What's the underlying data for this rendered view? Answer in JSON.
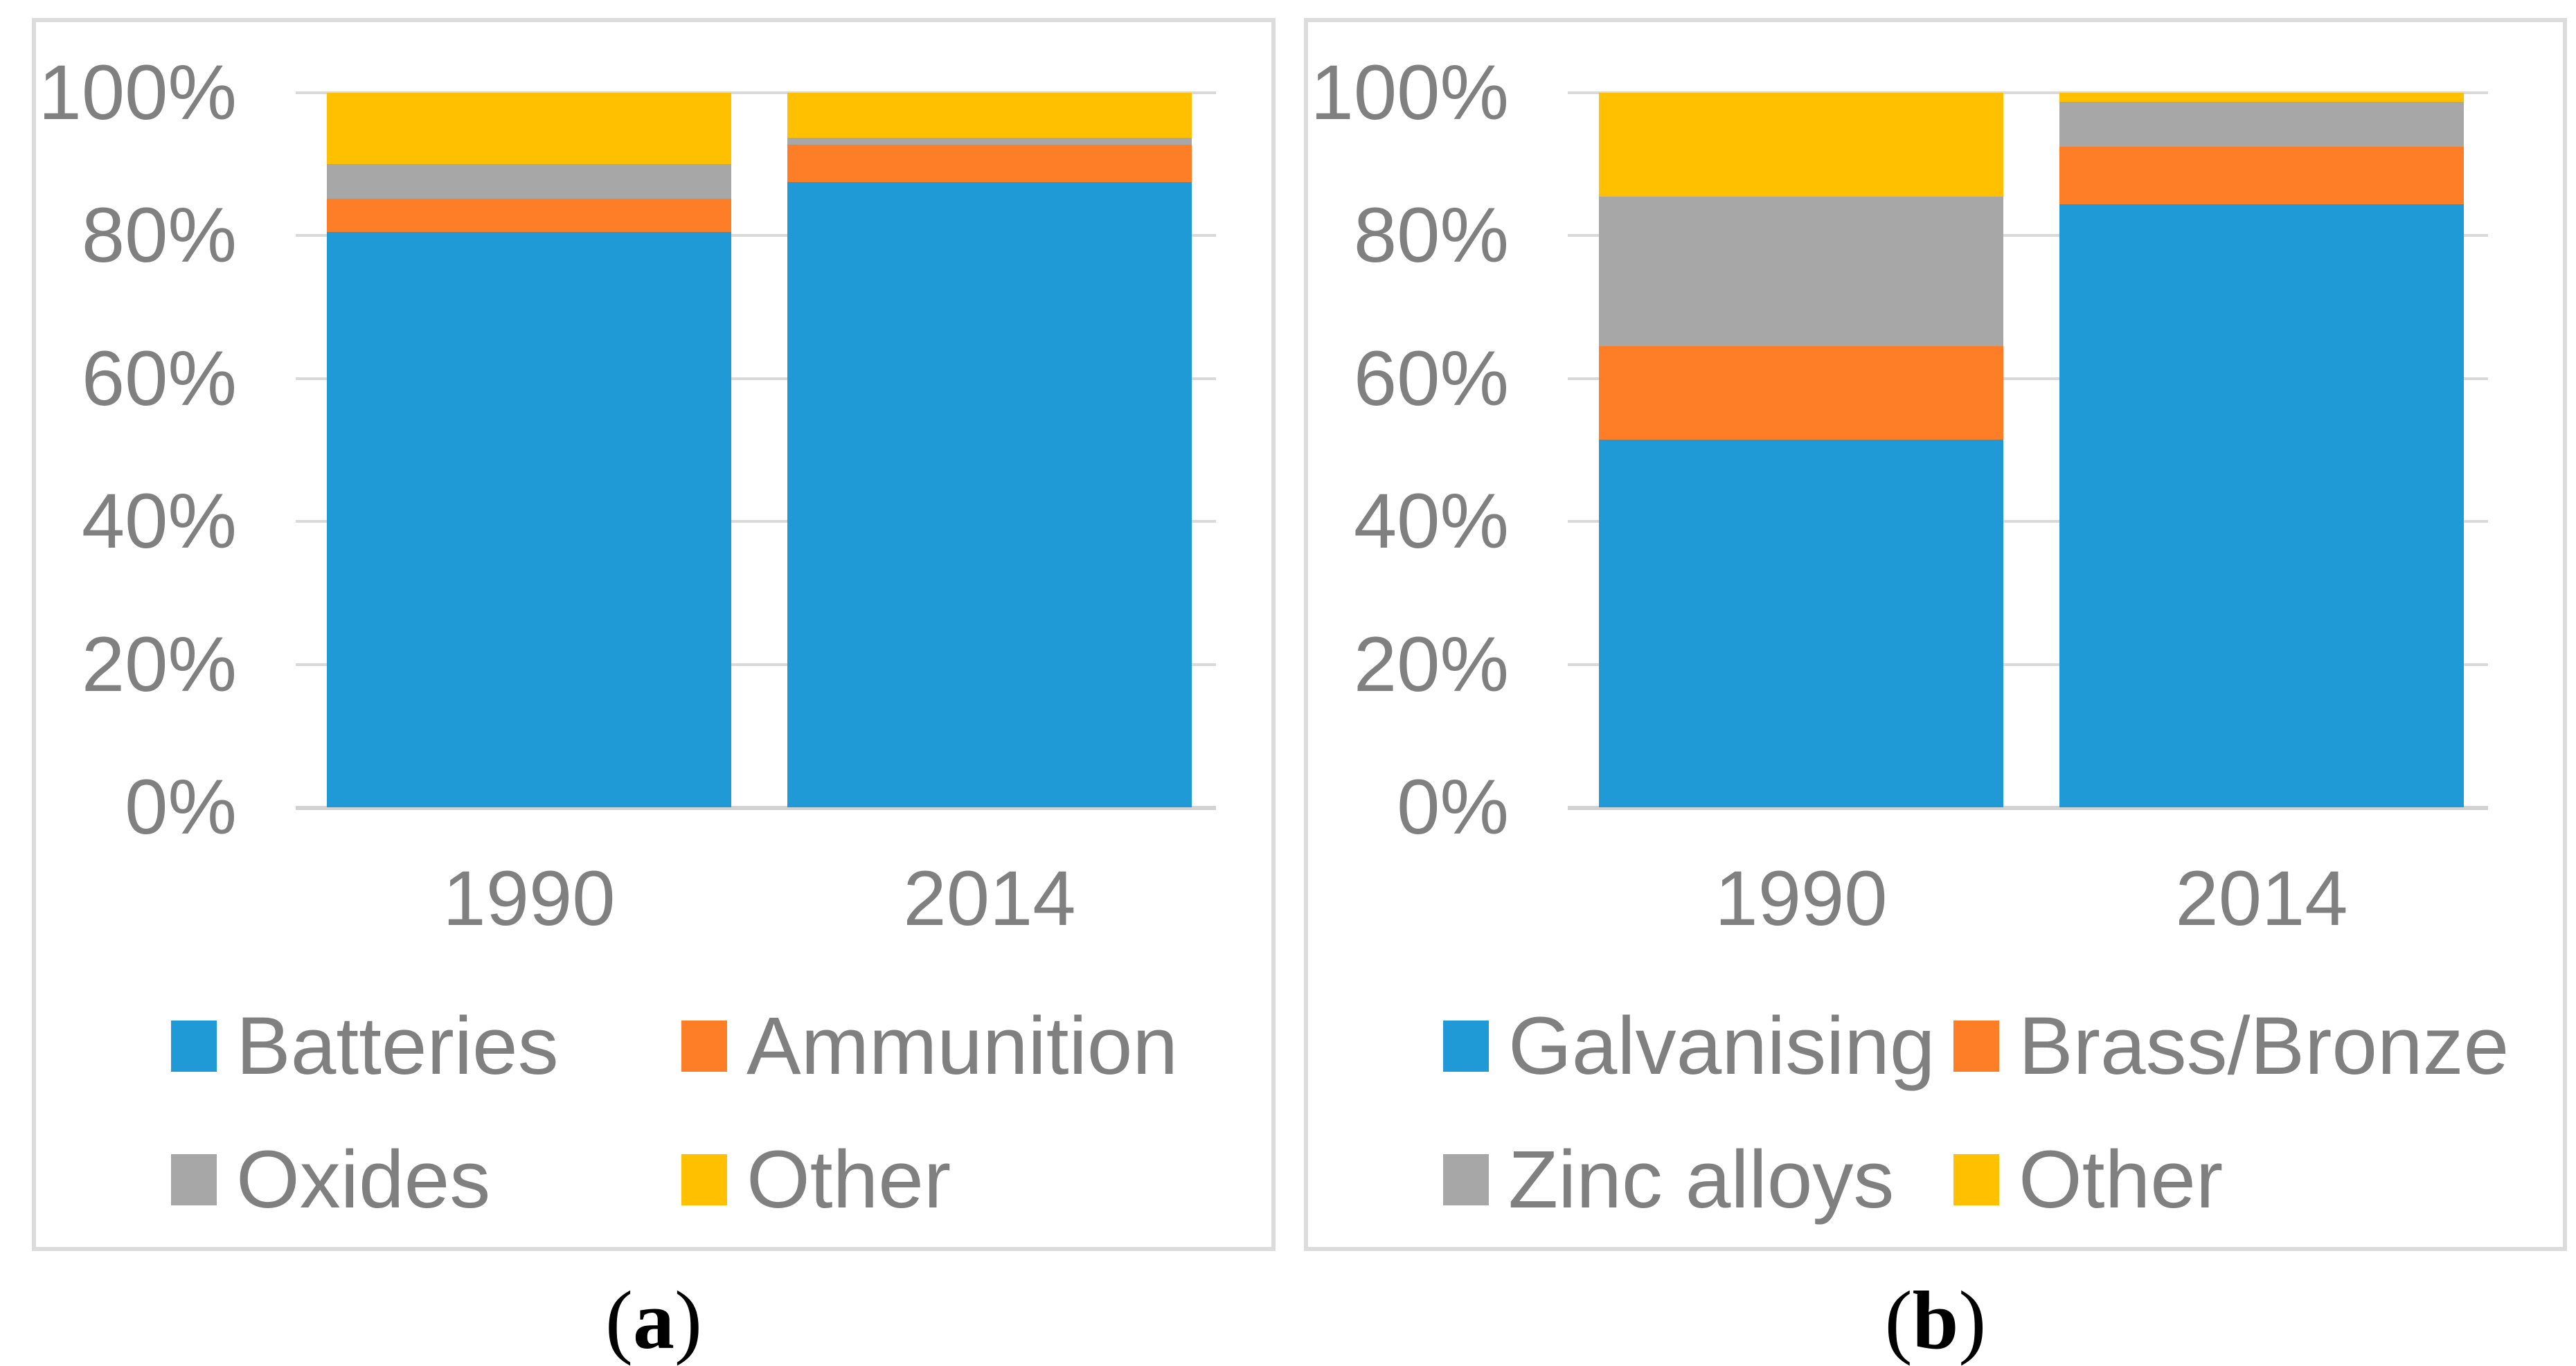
{
  "styles": {
    "axis_text_color": "#808080",
    "gridline_color": "#d9d9d9",
    "baseline_color": "#d2d2d2",
    "panel_border_color": "#dcdcdc",
    "caption_color": "#000000",
    "series_palette": [
      "#1f9ad7",
      "#fd7e27",
      "#a7a7a7",
      "#ffc000"
    ]
  },
  "chart_data": [
    {
      "type": "bar",
      "variant": "stacked-100pct",
      "caption": "(a)",
      "title": "",
      "xlabel": "",
      "ylabel": "",
      "ylim": [
        0,
        100
      ],
      "grid": true,
      "legend_position": "bottom",
      "categories": [
        "1990",
        "2014"
      ],
      "y_ticks": [
        {
          "value": 0,
          "label": "0%"
        },
        {
          "value": 20,
          "label": "20%"
        },
        {
          "value": 40,
          "label": "40%"
        },
        {
          "value": 60,
          "label": "60%"
        },
        {
          "value": 80,
          "label": "80%"
        },
        {
          "value": 100,
          "label": "100%"
        }
      ],
      "series": [
        {
          "name": "Batteries",
          "color": "#1f9ad7",
          "values": [
            80.5,
            87.5
          ]
        },
        {
          "name": "Ammunition",
          "color": "#fd7e27",
          "values": [
            4.7,
            5.2
          ]
        },
        {
          "name": "Oxides",
          "color": "#a7a7a7",
          "values": [
            4.8,
            1.0
          ]
        },
        {
          "name": "Other",
          "color": "#ffc000",
          "values": [
            10.0,
            6.3
          ]
        }
      ],
      "legend_rows": [
        [
          "Batteries",
          "Ammunition"
        ],
        [
          "Oxides",
          "Other"
        ]
      ]
    },
    {
      "type": "bar",
      "variant": "stacked-100pct",
      "caption": "(b)",
      "title": "",
      "xlabel": "",
      "ylabel": "",
      "ylim": [
        0,
        100
      ],
      "grid": true,
      "legend_position": "bottom",
      "categories": [
        "1990",
        "2014"
      ],
      "y_ticks": [
        {
          "value": 0,
          "label": "0%"
        },
        {
          "value": 20,
          "label": "20%"
        },
        {
          "value": 40,
          "label": "40%"
        },
        {
          "value": 60,
          "label": "60%"
        },
        {
          "value": 80,
          "label": "80%"
        },
        {
          "value": 100,
          "label": "100%"
        }
      ],
      "series": [
        {
          "name": "Galvanising",
          "color": "#1f9ad7",
          "values": [
            51.5,
            84.4
          ]
        },
        {
          "name": "Brass/Bronze",
          "color": "#fd7e27",
          "values": [
            13.0,
            8.0
          ]
        },
        {
          "name": "Zinc alloys",
          "color": "#a7a7a7",
          "values": [
            21.0,
            6.3
          ]
        },
        {
          "name": "Other",
          "color": "#ffc000",
          "values": [
            14.5,
            1.3
          ]
        }
      ],
      "legend_rows": [
        [
          "Galvanising",
          "Brass/Bronze"
        ],
        [
          "Zinc alloys",
          "Other"
        ]
      ]
    }
  ]
}
